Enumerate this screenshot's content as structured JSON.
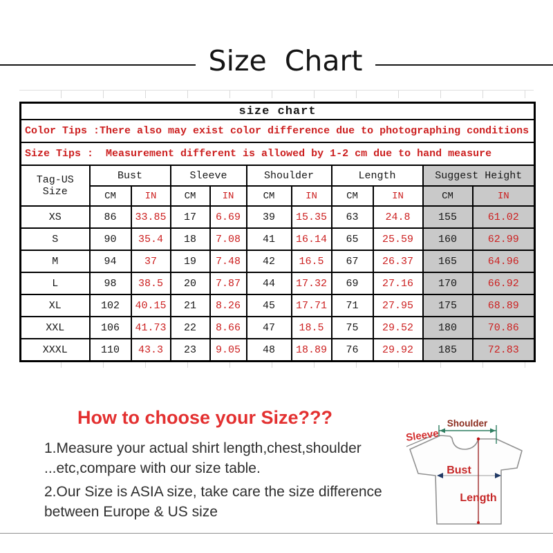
{
  "page": {
    "title": "Size  Chart"
  },
  "table": {
    "title": "size chart",
    "color_tips": "Color Tips :There also may exist color difference due to photographing conditions",
    "size_tips": "Size Tips :  Measurement different is allowed by 1-2 cm due to hand measure",
    "corner_header": "Tag-US Size",
    "unit_cm": "CM",
    "unit_in": "IN",
    "groups": [
      {
        "label": "Bust"
      },
      {
        "label": "Sleeve"
      },
      {
        "label": "Shoulder"
      },
      {
        "label": "Length"
      },
      {
        "label": "Suggest Height"
      }
    ],
    "rows": [
      {
        "size": "XS",
        "values": [
          "86",
          "33.85",
          "17",
          "6.69",
          "39",
          "15.35",
          "63",
          "24.8",
          "155",
          "61.02"
        ]
      },
      {
        "size": "S",
        "values": [
          "90",
          "35.4",
          "18",
          "7.08",
          "41",
          "16.14",
          "65",
          "25.59",
          "160",
          "62.99"
        ]
      },
      {
        "size": "M",
        "values": [
          "94",
          "37",
          "19",
          "7.48",
          "42",
          "16.5",
          "67",
          "26.37",
          "165",
          "64.96"
        ]
      },
      {
        "size": "L",
        "values": [
          "98",
          "38.5",
          "20",
          "7.87",
          "44",
          "17.32",
          "69",
          "27.16",
          "170",
          "66.92"
        ]
      },
      {
        "size": "XL",
        "values": [
          "102",
          "40.15",
          "21",
          "8.26",
          "45",
          "17.71",
          "71",
          "27.95",
          "175",
          "68.89"
        ]
      },
      {
        "size": "XXL",
        "values": [
          "106",
          "41.73",
          "22",
          "8.66",
          "47",
          "18.5",
          "75",
          "29.52",
          "180",
          "70.86"
        ]
      },
      {
        "size": "XXXL",
        "values": [
          "110",
          "43.3",
          "23",
          "9.05",
          "48",
          "18.89",
          "76",
          "29.92",
          "185",
          "72.83"
        ]
      }
    ]
  },
  "guide": {
    "heading": "How to choose your Size???",
    "lines": [
      "1.Measure your actual shirt length,chest,shoulder",
      "...etc,compare with our size table.",
      "2.Our Size is ASIA size, take care the size difference",
      "between Europe & US size"
    ]
  },
  "diagram": {
    "labels": {
      "shoulder": "Shoulder",
      "sleeve": "Sleeve",
      "bust": "Bust",
      "length": "Length"
    }
  },
  "colors": {
    "table_red": "#cc1f1f",
    "highlight_gray": "#c9c9c9",
    "heading_red": "#e33030",
    "diagram_label_red": "#c62828",
    "diagram_shoulder_maroon": "#8b2c1e",
    "shoulder_line_teal": "#2e7d60",
    "bust_arrow_navy": "#1f3864",
    "length_line_red": "#a33434"
  }
}
